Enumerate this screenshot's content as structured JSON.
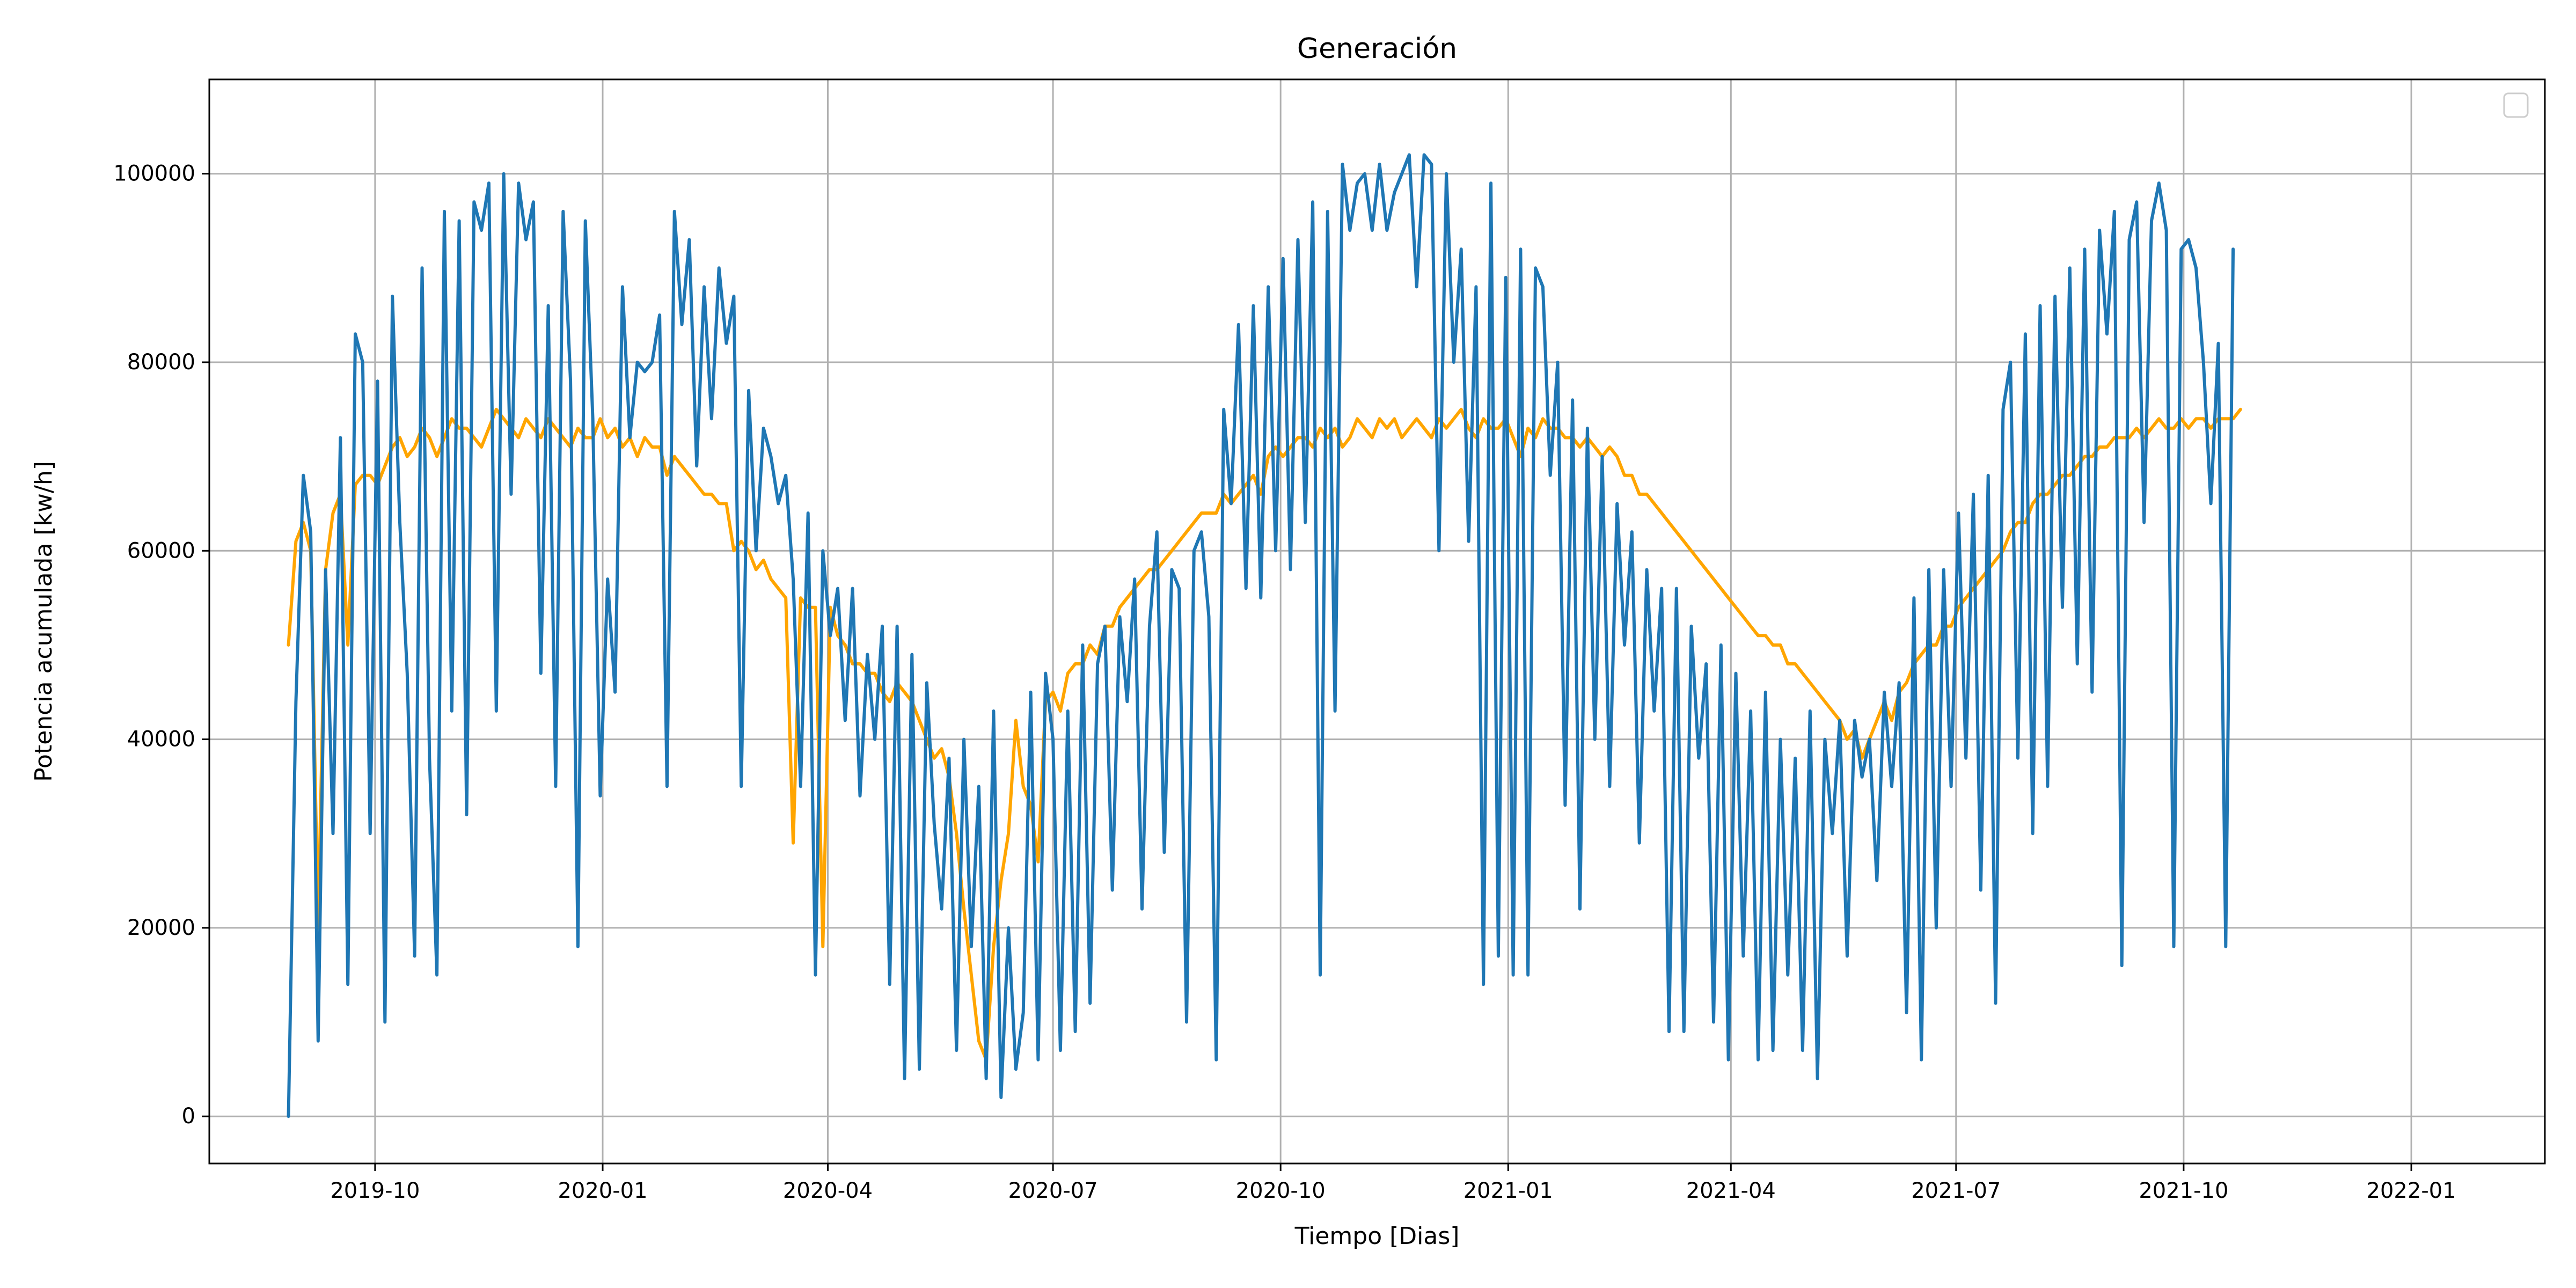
{
  "chart_data": {
    "type": "line",
    "title": "Generación",
    "xlabel": "Tiempo [Dias]",
    "ylabel": "Potencia acumulada [kw/h]",
    "xlim": [
      "2019-07-26",
      "2022-02-24"
    ],
    "ylim": [
      -5000,
      110000
    ],
    "x_ticks": [
      "2019-10-01",
      "2020-01-01",
      "2020-04-01",
      "2020-07-01",
      "2020-10-01",
      "2021-01-01",
      "2021-04-01",
      "2021-07-01",
      "2021-10-01",
      "2022-01-01"
    ],
    "x_tick_labels": [
      "2019-10",
      "2020-01",
      "2020-04",
      "2020-07",
      "2020-10",
      "2021-01",
      "2021-04",
      "2021-07",
      "2021-10",
      "2022-01"
    ],
    "y_ticks": [
      0,
      20000,
      40000,
      60000,
      80000,
      100000
    ],
    "y_tick_labels": [
      "0",
      "20000",
      "40000",
      "60000",
      "80000",
      "100000"
    ],
    "grid": true,
    "legend": {
      "placement": "top-right",
      "entries": []
    },
    "date_range": [
      "2019-08-27",
      "2022-01-01"
    ],
    "sample_step_days": 3,
    "series": [
      {
        "color": "#FFA500",
        "style": "line",
        "description": "smooth seasonal envelope with occasional dips",
        "values": [
          50000,
          61000,
          63000,
          60000,
          20000,
          58000,
          64000,
          66000,
          50000,
          67000,
          68000,
          68000,
          67000,
          69000,
          71000,
          72000,
          70000,
          71000,
          73000,
          72000,
          70000,
          72000,
          74000,
          73000,
          73000,
          72000,
          71000,
          73000,
          75000,
          74000,
          73000,
          72000,
          74000,
          73000,
          72000,
          74000,
          73000,
          72000,
          71000,
          73000,
          72000,
          72000,
          74000,
          72000,
          73000,
          71000,
          72000,
          70000,
          72000,
          71000,
          71000,
          68000,
          70000,
          69000,
          68000,
          67000,
          66000,
          66000,
          65000,
          65000,
          60000,
          61000,
          60000,
          58000,
          59000,
          57000,
          56000,
          55000,
          29000,
          55000,
          54000,
          54000,
          18000,
          54000,
          51000,
          50000,
          48000,
          48000,
          47000,
          47000,
          45000,
          44000,
          46000,
          45000,
          44000,
          42000,
          40000,
          38000,
          39000,
          36000,
          30000,
          22000,
          15000,
          8000,
          6000,
          18000,
          25000,
          30000,
          42000,
          35000,
          33000,
          27000,
          44000,
          45000,
          43000,
          47000,
          48000,
          48000,
          50000,
          49000,
          52000,
          52000,
          54000,
          55000,
          56000,
          57000,
          58000,
          58000,
          59000,
          60000,
          61000,
          62000,
          63000,
          64000,
          64000,
          64000,
          66000,
          65000,
          66000,
          67000,
          68000,
          66000,
          70000,
          71000,
          70000,
          71000,
          72000,
          72000,
          71000,
          73000,
          72000,
          73000,
          71000,
          72000,
          74000,
          73000,
          72000,
          74000,
          73000,
          74000,
          72000,
          73000,
          74000,
          73000,
          72000,
          74000,
          73000,
          74000,
          75000,
          73000,
          72000,
          74000,
          73000,
          73000,
          74000,
          72000,
          70000,
          73000,
          72000,
          74000,
          73000,
          73000,
          72000,
          72000,
          71000,
          72000,
          71000,
          70000,
          71000,
          70000,
          68000,
          68000,
          66000,
          66000,
          65000,
          64000,
          63000,
          62000,
          61000,
          60000,
          59000,
          58000,
          57000,
          56000,
          55000,
          54000,
          53000,
          52000,
          51000,
          51000,
          50000,
          50000,
          48000,
          48000,
          47000,
          46000,
          45000,
          44000,
          43000,
          42000,
          40000,
          41000,
          38000,
          40000,
          42000,
          44000,
          42000,
          45000,
          46000,
          48000,
          49000,
          50000,
          50000,
          52000,
          52000,
          54000,
          55000,
          56000,
          57000,
          58000,
          59000,
          60000,
          62000,
          63000,
          63000,
          65000,
          66000,
          66000,
          67000,
          68000,
          68000,
          69000,
          70000,
          70000,
          71000,
          71000,
          72000,
          72000,
          72000,
          73000,
          72000,
          73000,
          74000,
          73000,
          73000,
          74000,
          73000,
          74000,
          74000,
          73000,
          74000,
          74000,
          74000,
          75000
        ]
      },
      {
        "color": "#1F77B4",
        "style": "line",
        "description": "highly variable daily series oscillating under the seasonal envelope",
        "values": [
          0,
          44000,
          68000,
          62000,
          8000,
          58000,
          30000,
          72000,
          14000,
          83000,
          80000,
          30000,
          78000,
          10000,
          87000,
          63000,
          47000,
          17000,
          90000,
          38000,
          15000,
          96000,
          43000,
          95000,
          32000,
          97000,
          94000,
          99000,
          43000,
          100000,
          66000,
          99000,
          93000,
          97000,
          47000,
          86000,
          35000,
          96000,
          78000,
          18000,
          95000,
          74000,
          34000,
          57000,
          45000,
          88000,
          72000,
          80000,
          79000,
          80000,
          85000,
          35000,
          96000,
          84000,
          93000,
          69000,
          88000,
          74000,
          90000,
          82000,
          87000,
          35000,
          77000,
          60000,
          73000,
          70000,
          65000,
          68000,
          57000,
          35000,
          64000,
          15000,
          60000,
          51000,
          56000,
          42000,
          56000,
          34000,
          49000,
          40000,
          52000,
          14000,
          52000,
          4000,
          49000,
          5000,
          46000,
          31000,
          22000,
          38000,
          7000,
          40000,
          18000,
          35000,
          4000,
          43000,
          2000,
          20000,
          5000,
          11000,
          45000,
          6000,
          47000,
          40000,
          7000,
          43000,
          9000,
          50000,
          12000,
          48000,
          52000,
          24000,
          53000,
          44000,
          57000,
          22000,
          52000,
          62000,
          28000,
          58000,
          56000,
          10000,
          60000,
          62000,
          53000,
          6000,
          75000,
          65000,
          84000,
          56000,
          86000,
          55000,
          88000,
          60000,
          91000,
          58000,
          93000,
          63000,
          97000,
          15000,
          96000,
          43000,
          101000,
          94000,
          99000,
          100000,
          94000,
          101000,
          94000,
          98000,
          100000,
          102000,
          88000,
          102000,
          101000,
          60000,
          100000,
          80000,
          92000,
          61000,
          88000,
          14000,
          99000,
          17000,
          89000,
          15000,
          92000,
          15000,
          90000,
          88000,
          68000,
          80000,
          33000,
          76000,
          22000,
          73000,
          40000,
          70000,
          35000,
          65000,
          50000,
          62000,
          29000,
          58000,
          43000,
          56000,
          9000,
          56000,
          9000,
          52000,
          38000,
          48000,
          10000,
          50000,
          6000,
          47000,
          17000,
          43000,
          6000,
          45000,
          7000,
          40000,
          15000,
          38000,
          7000,
          43000,
          4000,
          40000,
          30000,
          42000,
          17000,
          42000,
          36000,
          40000,
          25000,
          45000,
          35000,
          46000,
          11000,
          55000,
          6000,
          58000,
          20000,
          58000,
          35000,
          64000,
          38000,
          66000,
          24000,
          68000,
          12000,
          75000,
          80000,
          38000,
          83000,
          30000,
          86000,
          35000,
          87000,
          54000,
          90000,
          48000,
          92000,
          45000,
          94000,
          83000,
          96000,
          16000,
          93000,
          97000,
          63000,
          95000,
          99000,
          94000,
          18000,
          92000,
          93000,
          90000,
          80000,
          65000,
          82000,
          18000,
          92000
        ]
      }
    ]
  }
}
